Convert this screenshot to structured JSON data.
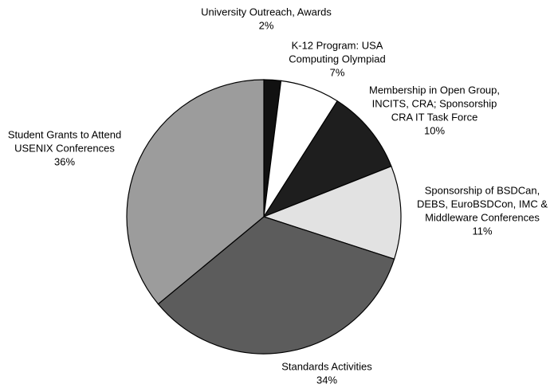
{
  "chart_data": {
    "type": "pie",
    "categories": [
      [
        "University Outreach, Awards"
      ],
      [
        "K-12 Program: USA",
        "Computing Olympiad"
      ],
      [
        "Membership in Open Group,",
        "INCITS, CRA;  Sponsorship",
        "CRA IT Task Force"
      ],
      [
        "Sponsorship of BSDCan,",
        "DEBS, EuroBSDCon, IMC &",
        "Middleware Conferences"
      ],
      [
        "Standards Activities"
      ],
      [
        "Student Grants to Attend",
        "USENIX Conferences"
      ]
    ],
    "values": [
      2,
      7,
      10,
      11,
      34,
      36
    ],
    "value_labels": [
      "2%",
      "7%",
      "10%",
      "11%",
      "34%",
      "36%"
    ],
    "colors": [
      "#111111",
      "#ffffff",
      "#1e1e1e",
      "#e2e2e2",
      "#5c5c5c",
      "#9c9c9c"
    ]
  }
}
